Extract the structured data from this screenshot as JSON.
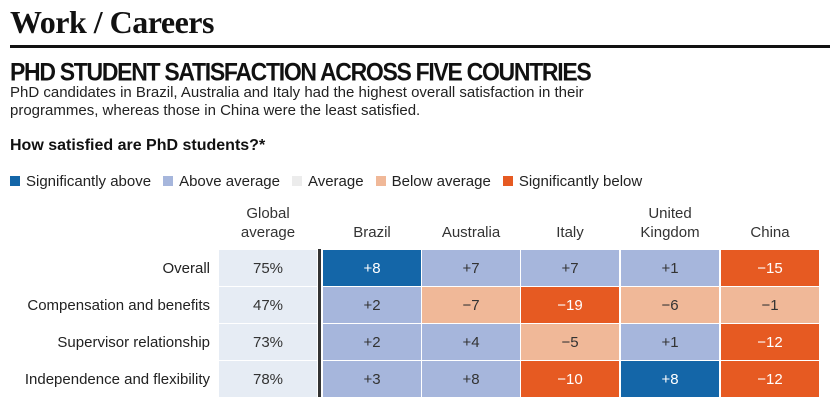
{
  "section": {
    "title": "Work / Careers"
  },
  "headline": "PHD STUDENT SATISFACTION ACROSS FIVE COUNTRIES",
  "subtitle": "PhD candidates in Brazil, Australia and Italy had the highest overall satisfaction in their programmes, whereas those in China were the least satisfied.",
  "question": "How satisfied are PhD students?*",
  "colors": {
    "significantly_above": "#1466a8",
    "above_average": "#a6b6dc",
    "average": "#ececec",
    "below_average": "#f0b898",
    "significantly_below": "#e65a22",
    "global_cell": "#e6ecf4",
    "divider": "#333333"
  },
  "legend": [
    {
      "key": "significantly_above",
      "label": "Significantly above"
    },
    {
      "key": "above_average",
      "label": "Above average"
    },
    {
      "key": "average",
      "label": "Average"
    },
    {
      "key": "below_average",
      "label": "Below average"
    },
    {
      "key": "significantly_below",
      "label": "Significantly below"
    }
  ],
  "chart_data": {
    "type": "heatmap",
    "title": "How satisfied are PhD students?*",
    "global_header": [
      "Global",
      "average"
    ],
    "columns": [
      {
        "name": "Brazil",
        "lines": [
          "Brazil"
        ]
      },
      {
        "name": "Australia",
        "lines": [
          "Australia"
        ]
      },
      {
        "name": "Italy",
        "lines": [
          "Italy"
        ]
      },
      {
        "name": "United Kingdom",
        "lines": [
          "United",
          "Kingdom"
        ]
      },
      {
        "name": "China",
        "lines": [
          "China"
        ]
      }
    ],
    "rows": [
      {
        "label": "Overall",
        "global": "75%",
        "values": [
          "+8",
          "+7",
          "+7",
          "+1",
          "−15"
        ],
        "categories": [
          "significantly_above",
          "above_average",
          "above_average",
          "above_average",
          "significantly_below"
        ]
      },
      {
        "label": "Compensation and benefits",
        "global": "47%",
        "values": [
          "+2",
          "−7",
          "−19",
          "−6",
          "−1"
        ],
        "categories": [
          "above_average",
          "below_average",
          "significantly_below",
          "below_average",
          "below_average"
        ]
      },
      {
        "label": "Supervisor relationship",
        "global": "73%",
        "values": [
          "+2",
          "+4",
          "−5",
          "+1",
          "−12"
        ],
        "categories": [
          "above_average",
          "above_average",
          "below_average",
          "above_average",
          "significantly_below"
        ]
      },
      {
        "label": "Independence and flexibility",
        "global": "78%",
        "values": [
          "+3",
          "+8",
          "−10",
          "+8",
          "−12"
        ],
        "categories": [
          "above_average",
          "above_average",
          "significantly_below",
          "significantly_above",
          "significantly_below"
        ]
      }
    ]
  }
}
